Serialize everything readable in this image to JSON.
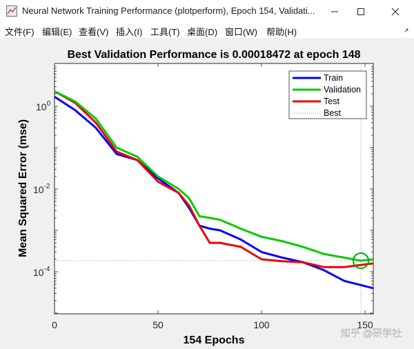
{
  "window": {
    "title": "Neural Network Training Performance (plotperform), Epoch 154, Validati...",
    "controls": [
      "minimize",
      "maximize",
      "close"
    ]
  },
  "menu": {
    "items": [
      "文件(F)",
      "编辑(E)",
      "查看(V)",
      "插入(I)",
      "工具(T)",
      "桌面(D)",
      "窗口(W)",
      "帮助(H)"
    ]
  },
  "watermark": "知乎 @研学社",
  "chart_data": {
    "type": "line",
    "title": "Best Validation Performance is 0.00018472 at epoch 148",
    "xlabel": "154 Epochs",
    "ylabel": "Mean Squared Error  (mse)",
    "xlim": [
      0,
      154
    ],
    "yscale": "log",
    "xticks": [
      "0",
      "50",
      "100",
      "150"
    ],
    "yticks": [
      "10",
      "10",
      "10"
    ],
    "ytick_exponents": [
      "0",
      "-2",
      "-4"
    ],
    "legend_position": "top-right",
    "series": [
      {
        "name": "Train",
        "color": "#0000ff",
        "x": [
          0,
          10,
          20,
          30,
          40,
          50,
          60,
          65,
          70,
          75,
          80,
          90,
          100,
          110,
          120,
          130,
          140,
          150,
          154
        ],
        "y": [
          1.7,
          0.8,
          0.3,
          0.07,
          0.05,
          0.018,
          0.008,
          0.0035,
          0.0013,
          0.0011,
          0.001,
          0.0006,
          0.0003,
          0.00022,
          0.00017,
          0.00011,
          6e-05,
          4.5e-05,
          4e-05
        ]
      },
      {
        "name": "Validation",
        "color": "#00cc00",
        "x": [
          0,
          10,
          20,
          30,
          40,
          50,
          60,
          65,
          70,
          75,
          80,
          90,
          100,
          110,
          120,
          130,
          140,
          148,
          154
        ],
        "y": [
          2.3,
          1.3,
          0.5,
          0.1,
          0.06,
          0.02,
          0.01,
          0.006,
          0.0022,
          0.002,
          0.0018,
          0.0011,
          0.0007,
          0.00055,
          0.0004,
          0.00027,
          0.00022,
          0.00018472,
          0.0002
        ]
      },
      {
        "name": "Test",
        "color": "#ee0000",
        "x": [
          0,
          10,
          20,
          30,
          40,
          50,
          60,
          65,
          70,
          75,
          80,
          90,
          100,
          110,
          120,
          130,
          140,
          150,
          154
        ],
        "y": [
          2.3,
          1.2,
          0.4,
          0.08,
          0.05,
          0.015,
          0.008,
          0.004,
          0.0013,
          0.0005,
          0.0005,
          0.0004,
          0.0002,
          0.00018,
          0.00017,
          0.00013,
          0.00013,
          0.00015,
          0.00016
        ]
      },
      {
        "name": "Best",
        "style": "dotted",
        "color": "#808080"
      }
    ],
    "best": {
      "epoch": 148,
      "value": 0.00018472
    }
  }
}
